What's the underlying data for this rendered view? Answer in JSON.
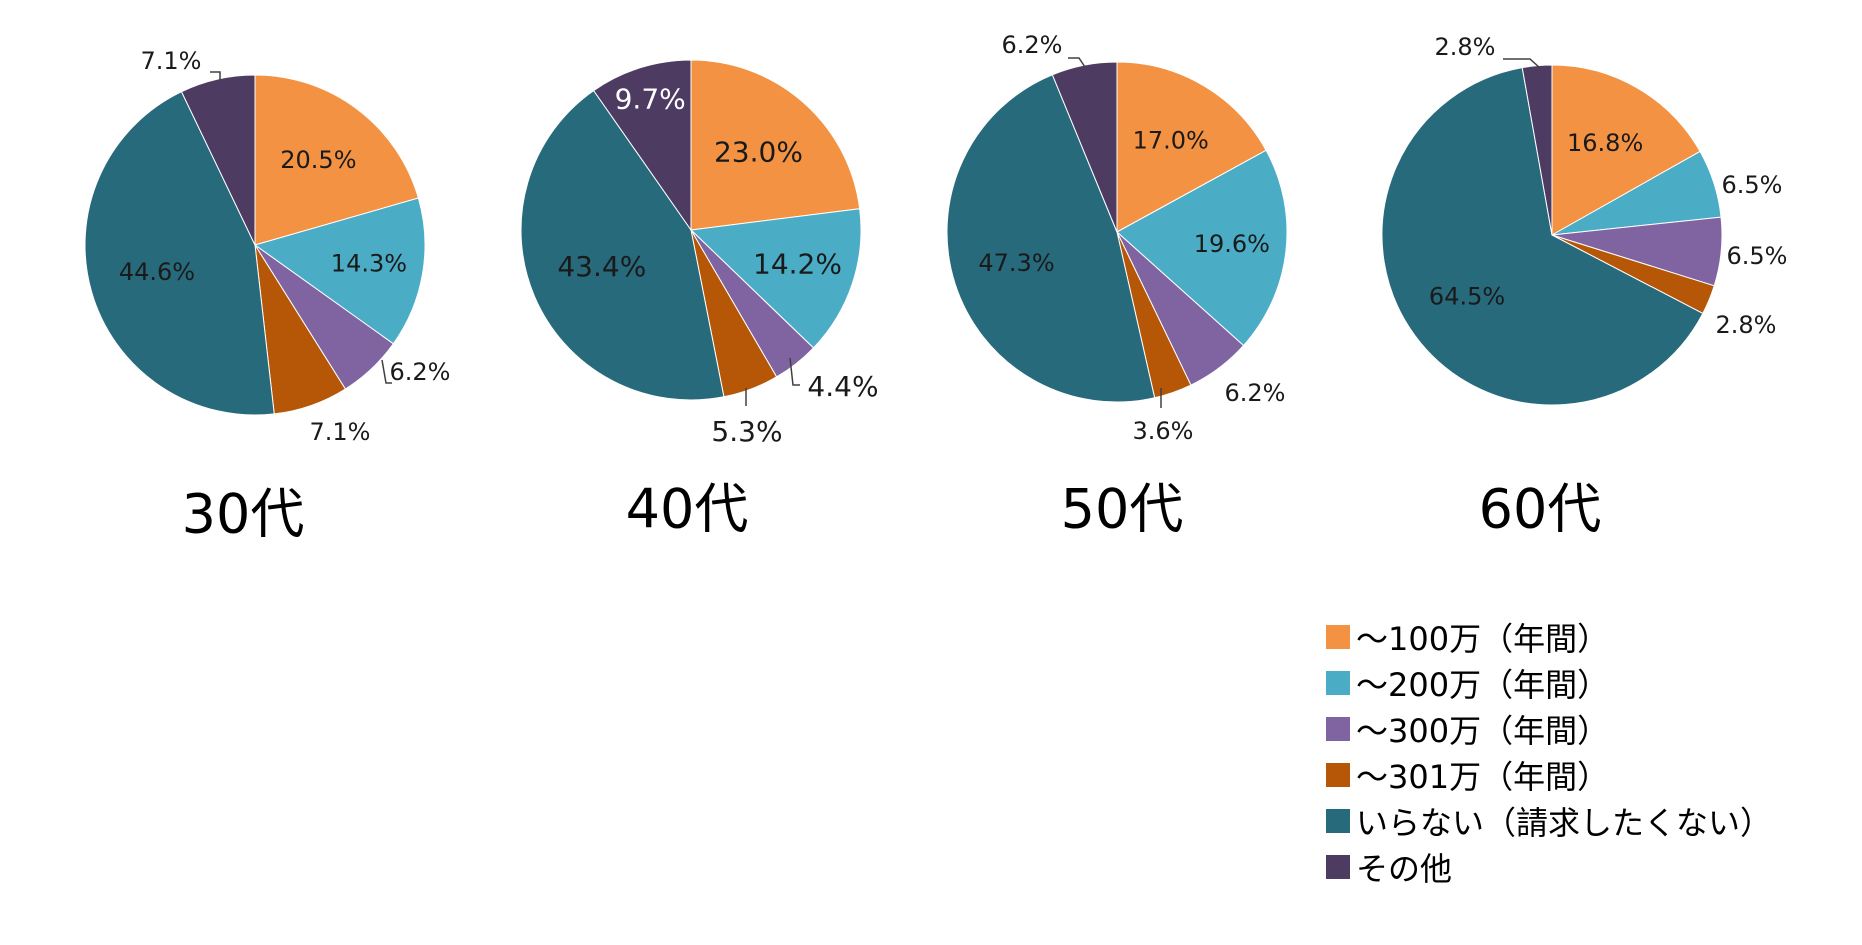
{
  "colors": [
    "#F39242",
    "#4BACC6",
    "#8064A2",
    "#B65708",
    "#276A7C",
    "#4E3B62"
  ],
  "chart_data": {
    "type": "pie",
    "categories": [
      "～100万（年間）",
      "～200万（年間）",
      "～300万（年間）",
      "～301万（年間）",
      "いらない（請求したくない）",
      "その他"
    ],
    "legend_position": "bottom-right",
    "charts": [
      {
        "title": "30代",
        "values": [
          20.5,
          14.3,
          6.2,
          7.1,
          44.6,
          7.1
        ],
        "labels": [
          "20.5%",
          "14.3%",
          "6.2%",
          "7.1%",
          "44.6%",
          "7.1%"
        ]
      },
      {
        "title": "40代",
        "values": [
          23.0,
          14.2,
          4.4,
          5.3,
          43.4,
          9.7
        ],
        "labels": [
          "23.0%",
          "14.2%",
          "4.4%",
          "5.3%",
          "43.4%",
          "9.7%"
        ]
      },
      {
        "title": "50代",
        "values": [
          17.0,
          19.6,
          6.2,
          3.6,
          47.3,
          6.2
        ],
        "labels": [
          "17.0%",
          "19.6%",
          "6.2%",
          "3.6%",
          "47.3%",
          "6.2%"
        ]
      },
      {
        "title": "60代",
        "values": [
          16.8,
          6.5,
          6.5,
          2.8,
          64.5,
          2.8
        ],
        "labels": [
          "16.8%",
          "6.5%",
          "6.5%",
          "2.8%",
          "64.5%",
          "2.8%"
        ]
      }
    ]
  }
}
